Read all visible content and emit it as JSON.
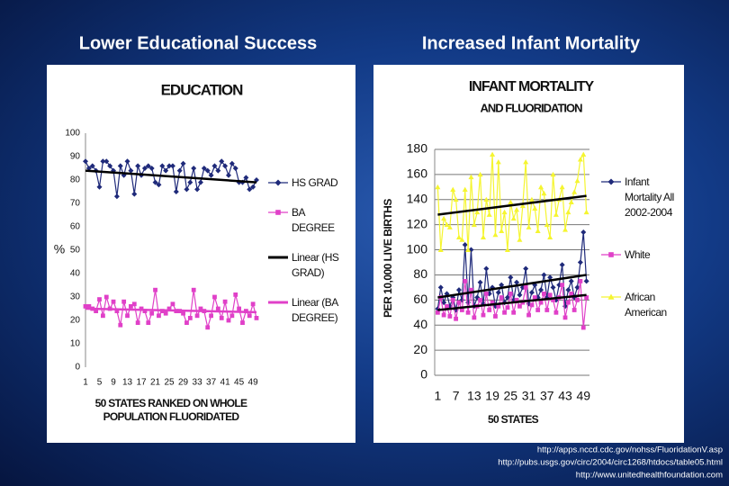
{
  "headings": [
    "Lower Educational Success",
    "Increased Infant Mortality"
  ],
  "sources": [
    "http://apps.nccd.cdc.gov/nohss/FluoridationV.asp",
    "http://pubs.usgs.gov/circ/2004/circ1268/htdocs/table05.html",
    "http://www.unitedhealthfoundation.com"
  ],
  "chart_data": [
    {
      "type": "line",
      "title": "EDUCATION",
      "ylabel": "%",
      "xlabel": [
        "50 STATES RANKED ON WHOLE",
        "POPULATION FLUORIDATED"
      ],
      "x": [
        1,
        2,
        3,
        4,
        5,
        6,
        7,
        8,
        9,
        10,
        11,
        12,
        13,
        14,
        15,
        16,
        17,
        18,
        19,
        20,
        21,
        22,
        23,
        24,
        25,
        26,
        27,
        28,
        29,
        30,
        31,
        32,
        33,
        34,
        35,
        36,
        37,
        38,
        39,
        40,
        41,
        42,
        43,
        44,
        45,
        46,
        47,
        48,
        49,
        50
      ],
      "xlim": [
        1,
        50
      ],
      "xticks": [
        1,
        5,
        9,
        13,
        17,
        21,
        25,
        29,
        33,
        37,
        41,
        45,
        49
      ],
      "ylim": [
        0,
        100
      ],
      "yticks": [
        0,
        10,
        20,
        30,
        40,
        50,
        60,
        70,
        80,
        90,
        100
      ],
      "grid": false,
      "series": [
        {
          "name": "HS GRAD",
          "color": "#1f2a7a",
          "marker": "diamond",
          "values": [
            88,
            85,
            86,
            84,
            77,
            88,
            88,
            86,
            84,
            73,
            86,
            82,
            88,
            84,
            74,
            86,
            82,
            85,
            86,
            85,
            79,
            78,
            86,
            84,
            86,
            86,
            75,
            84,
            87,
            76,
            79,
            85,
            76,
            79,
            85,
            84,
            82,
            86,
            84,
            88,
            86,
            82,
            87,
            85,
            79,
            79,
            81,
            76,
            77,
            80
          ]
        },
        {
          "name": "BA DEGREE",
          "color": "#e040c8",
          "marker": "square",
          "values": [
            26,
            26,
            25,
            24,
            29,
            22,
            30,
            25,
            28,
            24,
            18,
            28,
            22,
            26,
            27,
            19,
            25,
            24,
            19,
            23,
            33,
            22,
            24,
            23,
            25,
            27,
            24,
            24,
            23,
            19,
            21,
            33,
            22,
            25,
            24,
            17,
            22,
            30,
            25,
            21,
            28,
            20,
            22,
            31,
            25,
            19,
            24,
            22,
            27,
            21
          ]
        }
      ],
      "trendlines": [
        {
          "name": "Linear (HS GRAD)",
          "color": "#000000",
          "x": [
            1,
            50
          ],
          "values": [
            84,
            79
          ]
        },
        {
          "name": "Linear (BA DEGREE)",
          "color": "#e040c8",
          "x": [
            1,
            50
          ],
          "values": [
            25,
            23.5
          ]
        }
      ]
    },
    {
      "type": "line",
      "title": "INFANT MORTALITY",
      "subtitle": "AND FLUORIDATION",
      "ylabel": "PER 10,000 LIVE BIRTHS",
      "xlabel": [
        "50 STATES"
      ],
      "x": [
        1,
        2,
        3,
        4,
        5,
        6,
        7,
        8,
        9,
        10,
        11,
        12,
        13,
        14,
        15,
        16,
        17,
        18,
        19,
        20,
        21,
        22,
        23,
        24,
        25,
        26,
        27,
        28,
        29,
        30,
        31,
        32,
        33,
        34,
        35,
        36,
        37,
        38,
        39,
        40,
        41,
        42,
        43,
        44,
        45,
        46,
        47,
        48,
        49,
        50
      ],
      "xlim": [
        0,
        51
      ],
      "xticks": [
        1,
        7,
        13,
        19,
        25,
        31,
        37,
        43,
        49
      ],
      "ylim": [
        0,
        180
      ],
      "yticks": [
        0,
        20,
        40,
        60,
        80,
        100,
        120,
        140,
        160,
        180
      ],
      "grid": true,
      "series": [
        {
          "name": "Infant Mortality All 2002-2004",
          "color": "#1f2a7a",
          "marker": "diamond",
          "values": [
            53,
            70,
            58,
            65,
            55,
            62,
            52,
            68,
            60,
            104,
            58,
            100,
            55,
            62,
            74,
            57,
            85,
            65,
            70,
            55,
            66,
            72,
            58,
            62,
            78,
            60,
            74,
            64,
            70,
            85,
            57,
            66,
            72,
            62,
            68,
            80,
            62,
            78,
            70,
            60,
            72,
            88,
            55,
            68,
            75,
            62,
            70,
            90,
            114,
            75
          ]
        },
        {
          "name": "White",
          "color": "#e040c8",
          "marker": "square",
          "values": [
            50,
            62,
            48,
            55,
            47,
            60,
            45,
            58,
            52,
            75,
            50,
            68,
            46,
            55,
            60,
            48,
            65,
            52,
            58,
            47,
            55,
            62,
            50,
            54,
            65,
            50,
            60,
            55,
            58,
            70,
            48,
            56,
            62,
            52,
            58,
            65,
            52,
            64,
            60,
            50,
            62,
            72,
            46,
            58,
            65,
            52,
            60,
            75,
            38,
            62
          ]
        },
        {
          "name": "African American",
          "color": "#f5f530",
          "marker": "triangle",
          "values": [
            150,
            100,
            125,
            120,
            118,
            148,
            140,
            110,
            108,
            148,
            100,
            158,
            120,
            130,
            160,
            110,
            140,
            128,
            176,
            112,
            170,
            115,
            130,
            100,
            138,
            125,
            132,
            108,
            135,
            170,
            118,
            140,
            133,
            115,
            150,
            145,
            120,
            110,
            160,
            128,
            140,
            150,
            116,
            130,
            138,
            146,
            155,
            172,
            176,
            130
          ]
        }
      ],
      "trendlines": [
        {
          "color": "#000000",
          "x": [
            1,
            50
          ],
          "values": [
            128,
            143
          ]
        },
        {
          "color": "#000000",
          "x": [
            1,
            50
          ],
          "values": [
            62,
            80
          ]
        },
        {
          "color": "#000000",
          "x": [
            1,
            50
          ],
          "values": [
            52,
            64
          ]
        }
      ]
    }
  ]
}
